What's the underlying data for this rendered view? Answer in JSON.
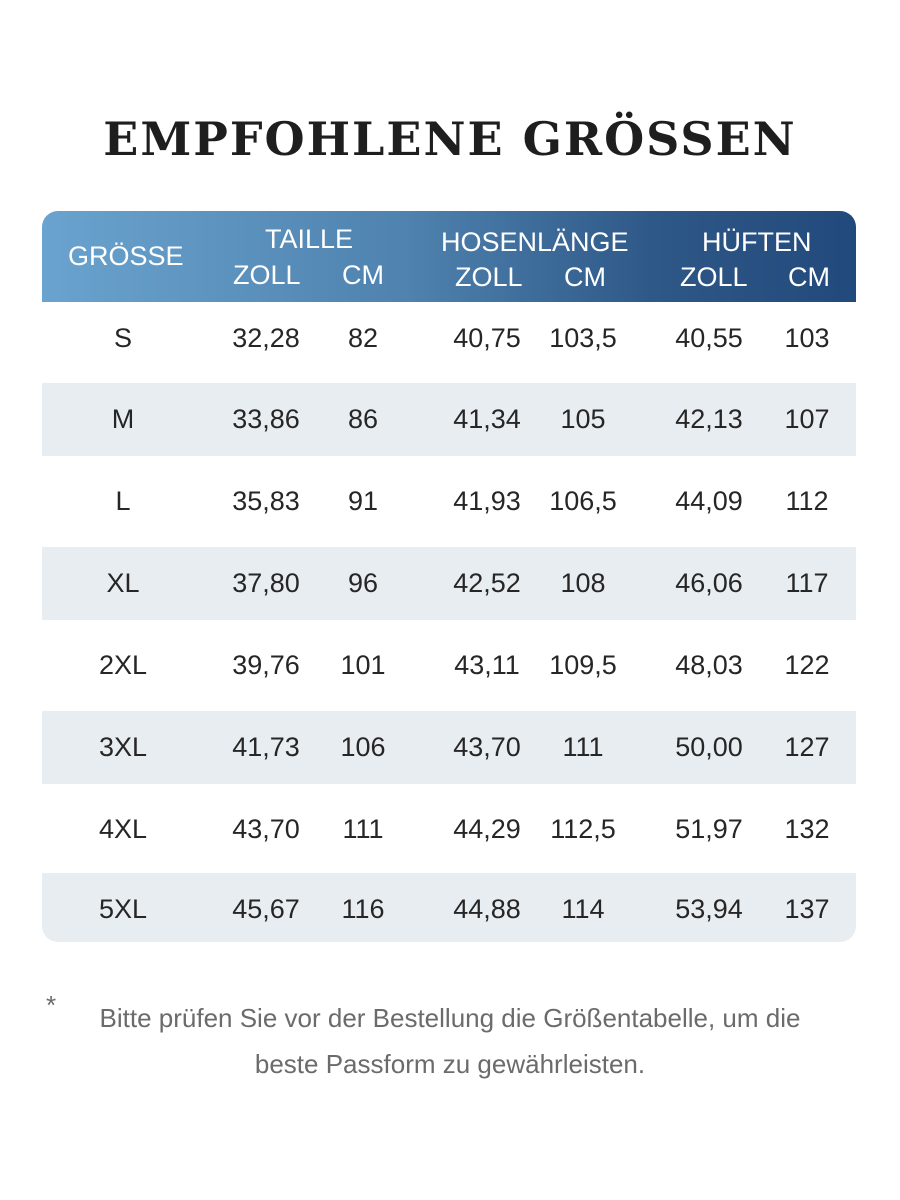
{
  "title": "EMPFOHLENE GRÖSSEN",
  "header": {
    "size": "GRÖSSE",
    "waist": "TAILLE",
    "inseam": "HOSENLÄNGE",
    "hips": "HÜFTEN",
    "unit_in": "ZOLL",
    "unit_cm": "CM"
  },
  "rows": [
    {
      "size": "S",
      "waist_in": "32,28",
      "waist_cm": "82",
      "len_in": "40,75",
      "len_cm": "103,5",
      "hip_in": "40,55",
      "hip_cm": "103"
    },
    {
      "size": "M",
      "waist_in": "33,86",
      "waist_cm": "86",
      "len_in": "41,34",
      "len_cm": "105",
      "hip_in": "42,13",
      "hip_cm": "107"
    },
    {
      "size": "L",
      "waist_in": "35,83",
      "waist_cm": "91",
      "len_in": "41,93",
      "len_cm": "106,5",
      "hip_in": "44,09",
      "hip_cm": "112"
    },
    {
      "size": "XL",
      "waist_in": "37,80",
      "waist_cm": "96",
      "len_in": "42,52",
      "len_cm": "108",
      "hip_in": "46,06",
      "hip_cm": "117"
    },
    {
      "size": "2XL",
      "waist_in": "39,76",
      "waist_cm": "101",
      "len_in": "43,11",
      "len_cm": "109,5",
      "hip_in": "48,03",
      "hip_cm": "122"
    },
    {
      "size": "3XL",
      "waist_in": "41,73",
      "waist_cm": "106",
      "len_in": "43,70",
      "len_cm": "111",
      "hip_in": "50,00",
      "hip_cm": "127"
    },
    {
      "size": "4XL",
      "waist_in": "43,70",
      "waist_cm": "111",
      "len_in": "44,29",
      "len_cm": "112,5",
      "hip_in": "51,97",
      "hip_cm": "132"
    },
    {
      "size": "5XL",
      "waist_in": "45,67",
      "waist_cm": "116",
      "len_in": "44,88",
      "len_cm": "114",
      "hip_in": "53,94",
      "hip_cm": "137"
    }
  ],
  "note": {
    "asterisk": "*",
    "line1": "Bitte prüfen Sie vor der Bestellung die Größentabelle, um die",
    "line2": "beste Passform zu gewährleisten."
  }
}
